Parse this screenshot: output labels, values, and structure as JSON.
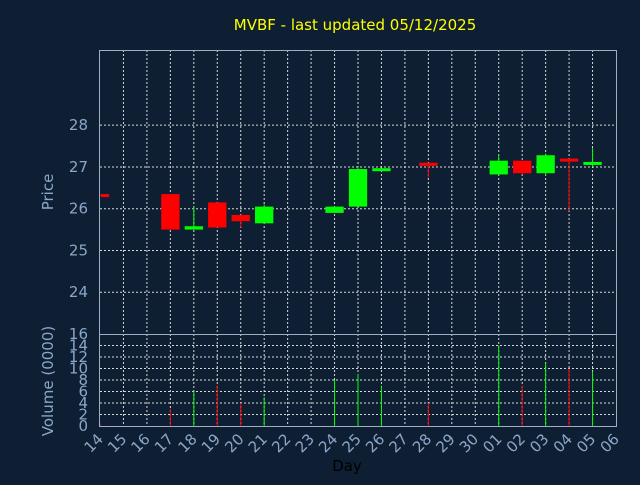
{
  "chart_data": {
    "type": "candlestick",
    "title": "MVBF - last updated 05/12/2025",
    "xlabel": "Day",
    "price_ylabel": "Price",
    "volume_ylabel": "Volume (0000)",
    "x_ticks": [
      "14",
      "15",
      "16",
      "17",
      "18",
      "19",
      "20",
      "21",
      "22",
      "23",
      "24",
      "25",
      "26",
      "27",
      "28",
      "29",
      "30",
      "01",
      "02",
      "03",
      "04",
      "05",
      "06"
    ],
    "price_ticks": [
      24,
      25,
      26,
      27,
      28
    ],
    "price_ylim": [
      23,
      29.8
    ],
    "volume_ticks": [
      0,
      2,
      4,
      6,
      8,
      10,
      12,
      14,
      16
    ],
    "volume_ylim": [
      0,
      16
    ],
    "grid": true,
    "colors": {
      "background": "#0f1f33",
      "plot_background": "#0f1f33",
      "up": "#00ff00",
      "down": "#ff0000",
      "title": "#ffff00",
      "axis": "#8aa7c8"
    },
    "candles": [
      {
        "day": "14",
        "open": 26.35,
        "high": 26.35,
        "low": 26.3,
        "close": 26.3,
        "volume": 0.5
      },
      {
        "day": "17",
        "open": 26.35,
        "high": 26.35,
        "low": 25.5,
        "close": 25.5,
        "volume": 3
      },
      {
        "day": "18",
        "open": 25.5,
        "high": 26.05,
        "low": 25.5,
        "close": 25.58,
        "volume": 6
      },
      {
        "day": "19",
        "open": 26.15,
        "high": 26.15,
        "low": 25.55,
        "close": 25.55,
        "volume": 7
      },
      {
        "day": "20",
        "open": 25.85,
        "high": 25.85,
        "low": 25.55,
        "close": 25.7,
        "volume": 4
      },
      {
        "day": "21",
        "open": 25.65,
        "high": 26.1,
        "low": 25.65,
        "close": 26.05,
        "volume": 5
      },
      {
        "day": "24",
        "open": 25.9,
        "high": 26.05,
        "low": 25.9,
        "close": 26.05,
        "volume": 8
      },
      {
        "day": "25",
        "open": 26.05,
        "high": 27.0,
        "low": 26.05,
        "close": 26.95,
        "volume": 9
      },
      {
        "day": "26",
        "open": 26.92,
        "high": 26.98,
        "low": 26.92,
        "close": 26.97,
        "volume": 7
      },
      {
        "day": "28",
        "open": 27.1,
        "high": 27.1,
        "low": 26.75,
        "close": 27.05,
        "volume": 4
      },
      {
        "day": "01",
        "open": 26.82,
        "high": 27.3,
        "low": 26.8,
        "close": 27.15,
        "volume": 14
      },
      {
        "day": "02",
        "open": 27.15,
        "high": 27.15,
        "low": 26.82,
        "close": 26.85,
        "volume": 7
      },
      {
        "day": "03",
        "open": 26.85,
        "high": 27.32,
        "low": 26.8,
        "close": 27.28,
        "volume": 11
      },
      {
        "day": "04",
        "open": 27.2,
        "high": 27.2,
        "low": 25.95,
        "close": 27.15,
        "volume": 10
      },
      {
        "day": "05",
        "open": 27.05,
        "high": 27.45,
        "low": 27.0,
        "close": 27.12,
        "volume": 9.5
      }
    ]
  }
}
